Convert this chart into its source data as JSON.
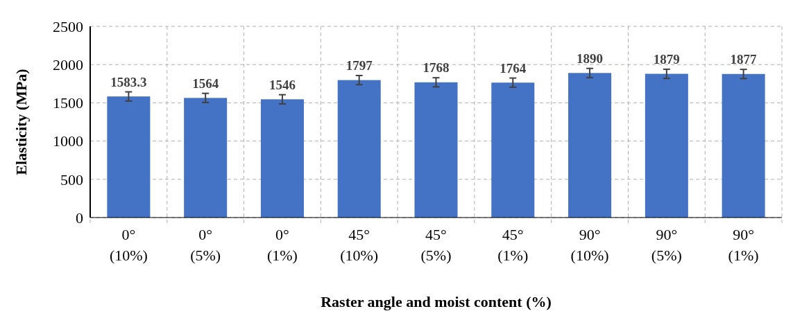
{
  "chart_data": {
    "type": "bar",
    "xlabel": "Raster angle and moist content (%)",
    "ylabel": "Elasticity (MPa)",
    "categories": [
      "0° (10%)",
      "0° (5%)",
      "0° (1%)",
      "45° (10%)",
      "45° (5%)",
      "45° (1%)",
      "90° (10%)",
      "90° (5%)",
      "90° (1%)"
    ],
    "values": [
      1583.3,
      1564,
      1546,
      1797,
      1768,
      1764,
      1890,
      1879,
      1877
    ],
    "errors": [
      60,
      60,
      60,
      60,
      60,
      60,
      60,
      60,
      60
    ],
    "color": "#4472c4",
    "ylim": [
      0,
      2500
    ],
    "yticks": [
      0,
      500,
      1000,
      1500,
      2000,
      2500
    ],
    "grid": true,
    "data_labels": true
  }
}
